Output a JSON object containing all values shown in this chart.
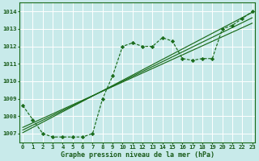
{
  "bg_color": "#c8eaea",
  "grid_color": "#ffffff",
  "line_color": "#1a6b1a",
  "marker_color": "#1a6b1a",
  "xlabel": "Graphe pression niveau de la mer (hPa)",
  "xlabel_color": "#1a5c1a",
  "yticks": [
    1007,
    1008,
    1009,
    1010,
    1011,
    1012,
    1013,
    1014
  ],
  "xticks": [
    0,
    1,
    2,
    3,
    4,
    5,
    6,
    7,
    8,
    9,
    10,
    11,
    12,
    13,
    14,
    15,
    16,
    17,
    18,
    19,
    20,
    21,
    22,
    23
  ],
  "ylim": [
    1006.5,
    1014.5
  ],
  "xlim": [
    -0.3,
    23.3
  ],
  "linear1": [
    1007.05,
    1007.35,
    1007.65,
    1007.95,
    1008.25,
    1008.55,
    1008.85,
    1009.15,
    1009.45,
    1009.75,
    1010.05,
    1010.35,
    1010.65,
    1010.95,
    1011.25,
    1011.55,
    1011.85,
    1012.15,
    1012.45,
    1012.75,
    1013.05,
    1013.35,
    1013.65,
    1013.95
  ],
  "linear2": [
    1007.2,
    1007.48,
    1007.76,
    1008.04,
    1008.32,
    1008.6,
    1008.88,
    1009.16,
    1009.44,
    1009.72,
    1010.0,
    1010.28,
    1010.56,
    1010.84,
    1011.12,
    1011.4,
    1011.68,
    1011.96,
    1012.24,
    1012.52,
    1012.8,
    1013.08,
    1013.36,
    1013.64
  ],
  "linear3": [
    1007.35,
    1007.61,
    1007.87,
    1008.13,
    1008.39,
    1008.65,
    1008.91,
    1009.17,
    1009.43,
    1009.69,
    1009.95,
    1010.21,
    1010.47,
    1010.73,
    1010.99,
    1011.25,
    1011.51,
    1011.77,
    1012.03,
    1012.29,
    1012.55,
    1012.81,
    1013.07,
    1013.33
  ],
  "wavy": [
    1008.6,
    1007.8,
    1007.0,
    1006.8,
    1006.8,
    1006.8,
    1006.8,
    1007.0,
    1009.0,
    1010.3,
    1012.0,
    1012.2,
    1012.0,
    1012.0,
    1012.5,
    1012.3,
    1011.3,
    1011.2,
    1011.3,
    1011.3,
    1013.0,
    1013.2,
    1013.6,
    1014.0
  ]
}
